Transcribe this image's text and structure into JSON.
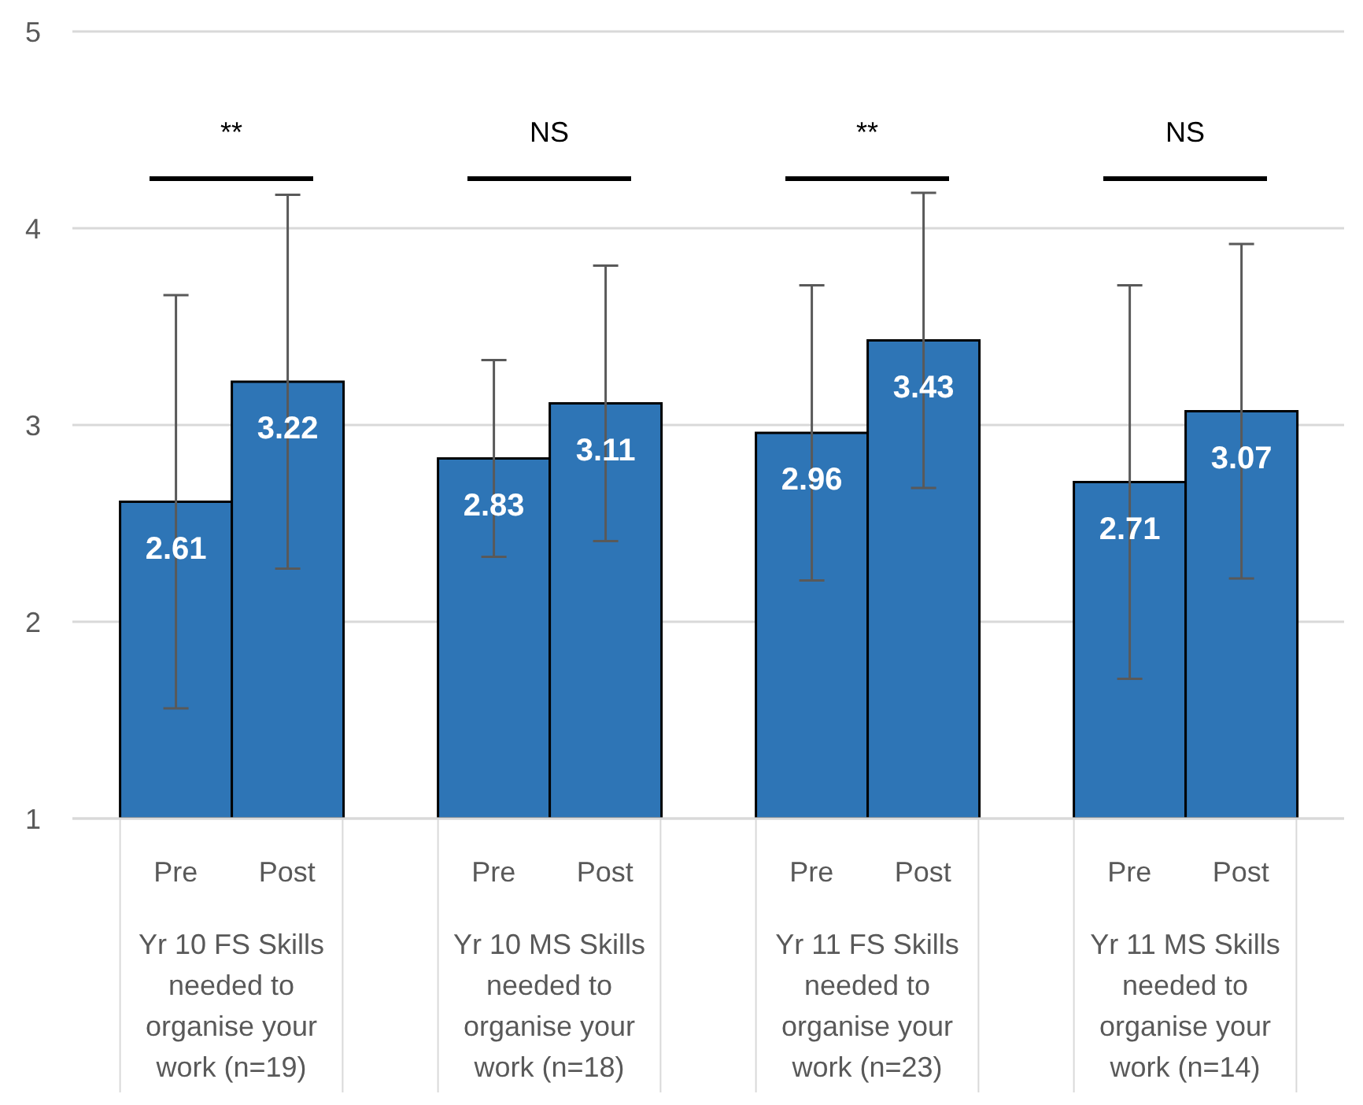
{
  "chart_data": {
    "type": "bar",
    "categories": [
      "Yr 10 FS Skills needed to organise your work (n=19)",
      "Yr 10 MS Skills needed to organise your work (n=18)",
      "Yr 11 FS Skills needed to organise your work (n=23)",
      "Yr 11 MS Skills needed to organise your work (n=14)"
    ],
    "series": [
      {
        "name": "Pre",
        "color": "#2e75b6",
        "values": [
          2.61,
          2.83,
          2.96,
          2.71
        ],
        "errors": [
          1.05,
          0.5,
          0.75,
          1.0
        ]
      },
      {
        "name": "Post",
        "color": "#2e75b6",
        "values": [
          3.22,
          3.11,
          3.43,
          3.07
        ],
        "errors": [
          0.95,
          0.7,
          0.75,
          0.85
        ]
      }
    ],
    "ylim": [
      1,
      5
    ],
    "yticks": [
      1,
      2,
      3,
      4,
      5
    ],
    "grid": "y",
    "data_labels": true,
    "annotations": [
      "**",
      "NS",
      "**",
      "NS"
    ]
  }
}
